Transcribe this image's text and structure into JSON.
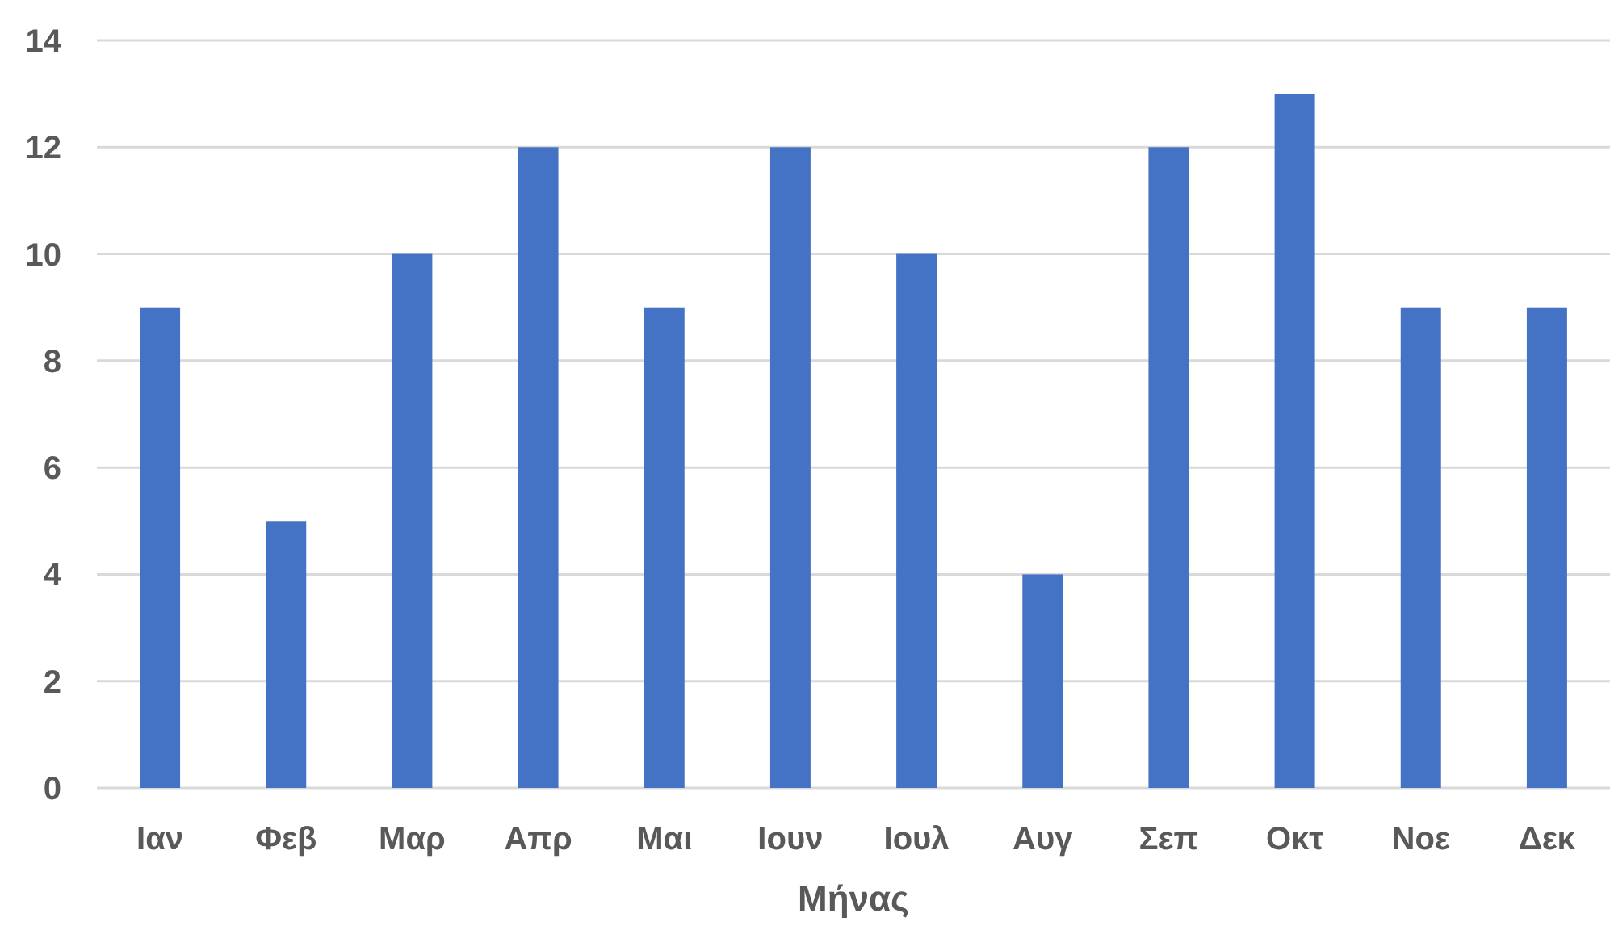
{
  "chart_data": {
    "type": "bar",
    "xlabel": "Μήνας",
    "categories": [
      "Ιαν",
      "Φεβ",
      "Μαρ",
      "Απρ",
      "Μαι",
      "Ιουν",
      "Ιουλ",
      "Αυγ",
      "Σεπ",
      "Οκτ",
      "Νοε",
      "Δεκ"
    ],
    "values": [
      9,
      5,
      10,
      12,
      9,
      12,
      10,
      4,
      12,
      13,
      9,
      9
    ],
    "color": "#4472c4",
    "ylim": [
      0,
      14
    ],
    "yticks": [
      0,
      2,
      4,
      6,
      8,
      10,
      12,
      14
    ],
    "grid": "y"
  }
}
